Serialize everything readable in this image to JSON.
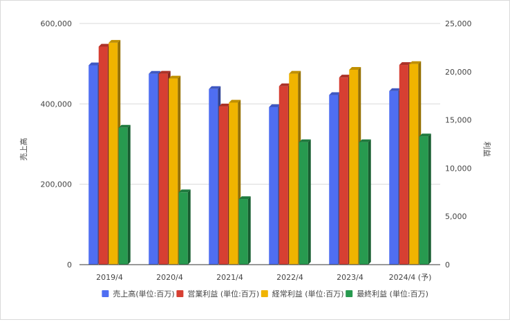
{
  "chart_data": {
    "type": "bar",
    "style": "3d-column-grouped-dual-axis",
    "categories": [
      "2019/4",
      "2020/4",
      "2021/4",
      "2022/4",
      "2023/4",
      "2024/4 (予)"
    ],
    "series": [
      {
        "name": "売上高(単位:百万)",
        "axis": "left",
        "color": "#4f6ef2",
        "values": [
          496000,
          475000,
          437000,
          392000,
          422000,
          432000
        ]
      },
      {
        "name": "営業利益 (単位:百万)",
        "axis": "right",
        "color": "#d73f32",
        "values": [
          22600,
          19800,
          16400,
          18500,
          19400,
          20700
        ]
      },
      {
        "name": "経常利益 (単位:百万)",
        "axis": "right",
        "color": "#f0b400",
        "values": [
          23000,
          19300,
          16800,
          19800,
          20200,
          20800
        ]
      },
      {
        "name": "最終利益 (単位:百万)",
        "axis": "right",
        "color": "#279a4f",
        "values": [
          14200,
          7500,
          6800,
          12700,
          12700,
          13300
        ]
      }
    ],
    "y_left": {
      "label": "売上高",
      "min": 0,
      "max": 600000,
      "ticks": [
        0,
        200000,
        400000,
        600000
      ],
      "tick_labels": [
        "0",
        "200,000",
        "400,000",
        "600,000"
      ]
    },
    "y_right": {
      "label": "利益",
      "min": 0,
      "max": 25000,
      "ticks": [
        0,
        5000,
        10000,
        15000,
        20000,
        25000
      ],
      "tick_labels": [
        "0",
        "5,000",
        "10,000",
        "15,000",
        "20,000",
        "25,000"
      ]
    },
    "grid": true,
    "legend": "bottom"
  }
}
